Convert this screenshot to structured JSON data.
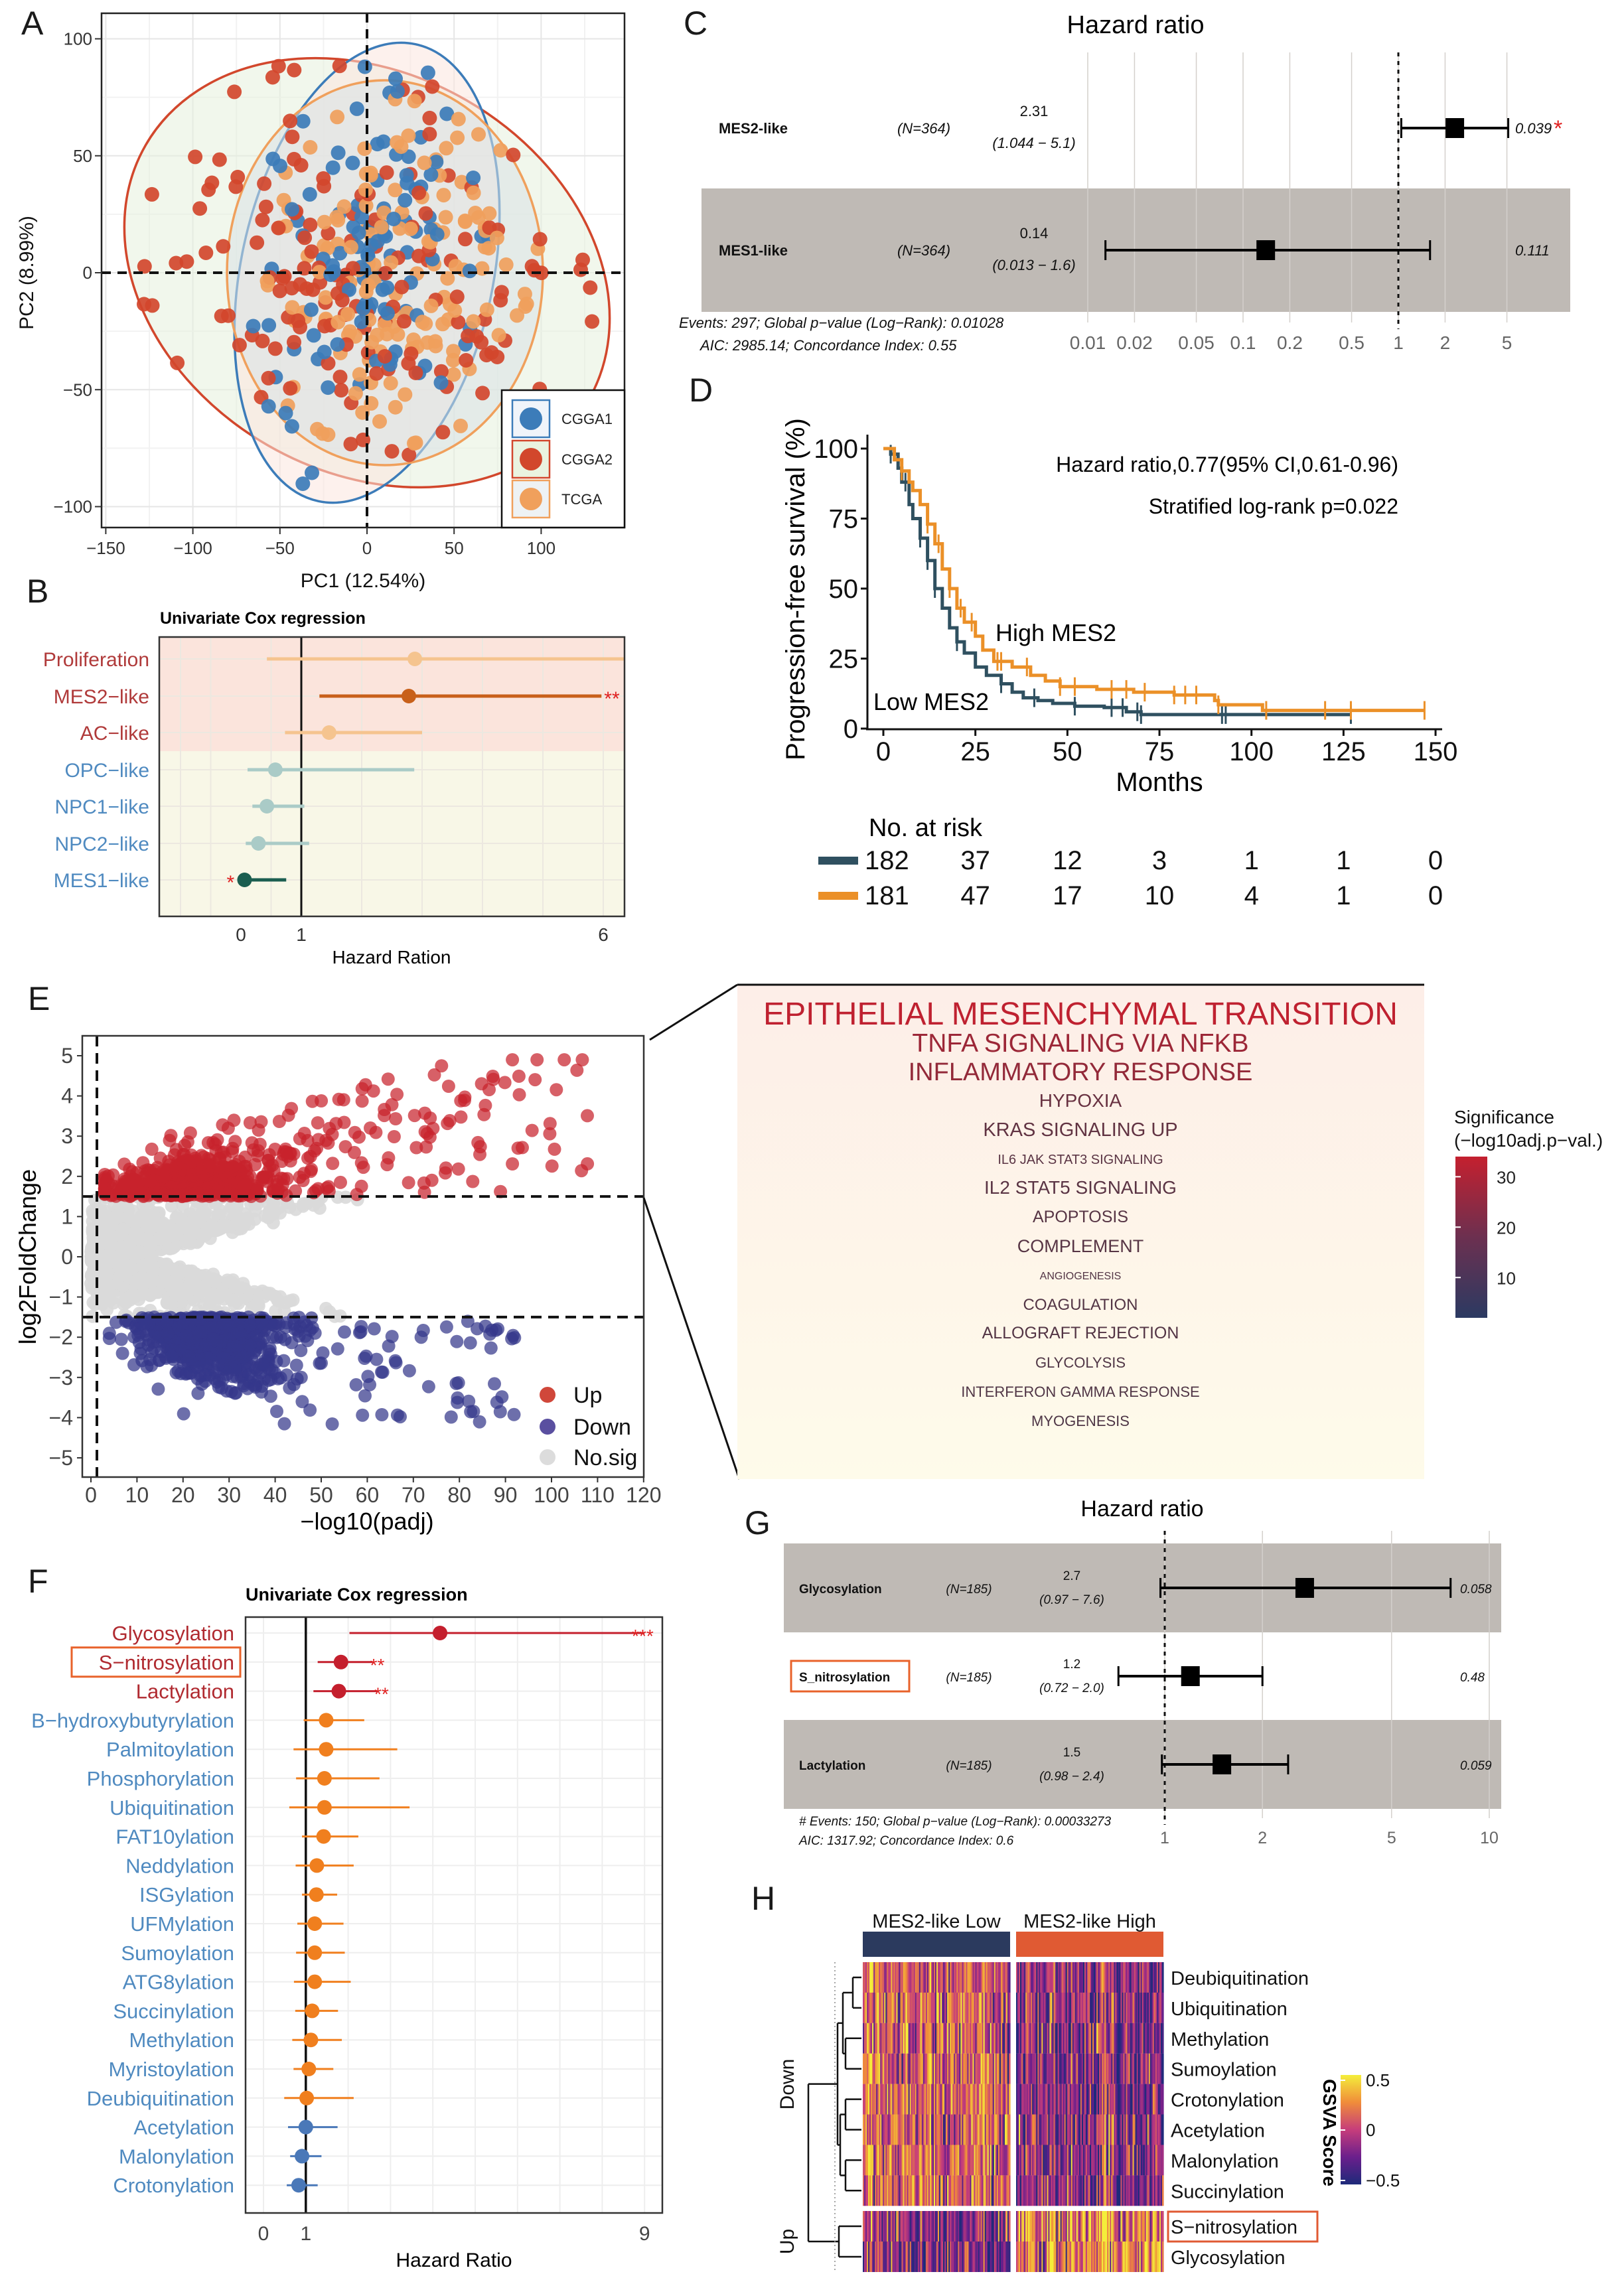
{
  "panel_labels": [
    "A",
    "B",
    "C",
    "D",
    "E",
    "F",
    "G",
    "H"
  ],
  "chart_data": [
    {
      "id": "A",
      "type": "scatter",
      "xlabel": "PC1 (12.54%)",
      "ylabel": "PC2 (8.99%)",
      "xlim": [
        -152,
        148
      ],
      "ylim": [
        -109,
        111
      ],
      "xticks": [
        -150,
        -100,
        -50,
        0,
        50,
        100
      ],
      "xtick_labels": [
        "−150",
        "−100",
        "−50",
        "0",
        "50",
        "100"
      ],
      "yticks": [
        -100,
        -50,
        0,
        50,
        100
      ],
      "ytick_labels": [
        "−100",
        "−50",
        "0",
        "50",
        "100"
      ],
      "grid": true,
      "legend_position": "bottom-right",
      "series": [
        {
          "name": "CGGA1",
          "color": "#3c7cb9"
        },
        {
          "name": "CGGA2",
          "color": "#d2472c"
        },
        {
          "name": "TCGA",
          "color": "#f0a05c"
        }
      ]
    },
    {
      "id": "B",
      "type": "forest",
      "title": "Univariate Cox regression",
      "xlabel": "Hazard Ration",
      "xticks": [
        0,
        1,
        6
      ],
      "xtick_labels": [
        "0",
        "1",
        "6"
      ],
      "xlim": [
        -1.35,
        6.35
      ],
      "rows": [
        {
          "label": "Proliferation",
          "hr": 2.88,
          "lo": 0.43,
          "hi": 6.35,
          "sig": "",
          "group": "risk",
          "color": "#f5c48f"
        },
        {
          "label": "MES2−like",
          "hr": 2.78,
          "lo": 1.3,
          "hi": 5.97,
          "sig": "**",
          "group": "risk",
          "color": "#c8601a"
        },
        {
          "label": "AC−like",
          "hr": 1.46,
          "lo": 0.73,
          "hi": 3.0,
          "sig": "",
          "group": "risk",
          "color": "#f5c48f"
        },
        {
          "label": "OPC−like",
          "hr": 0.57,
          "lo": 0.11,
          "hi": 2.87,
          "sig": "",
          "group": "protective",
          "color": "#aacbc7"
        },
        {
          "label": "NPC1−like",
          "hr": 0.43,
          "lo": 0.19,
          "hi": 1.05,
          "sig": "",
          "group": "protective",
          "color": "#aacbc7"
        },
        {
          "label": "NPC2−like",
          "hr": 0.29,
          "lo": 0.08,
          "hi": 1.13,
          "sig": "",
          "group": "protective",
          "color": "#aacbc7"
        },
        {
          "label": "MES1−like",
          "hr": 0.06,
          "lo": 0.06,
          "hi": 0.75,
          "sig": "*",
          "group": "protective",
          "color": "#1b5e50"
        }
      ],
      "colors": {
        "risk_label": "#b03a3a",
        "protective_label": "#4f8ac0",
        "risk_bg": "#fbe4dc",
        "protective_bg": "#f8f7e7",
        "sig": "#e02020"
      }
    },
    {
      "id": "C",
      "type": "forest-table",
      "title": "Hazard ratio",
      "xticks": [
        0.01,
        0.02,
        0.05,
        0.1,
        0.2,
        0.5,
        1,
        2,
        5
      ],
      "xtick_labels": [
        "0.01",
        "0.02",
        "0.05",
        "0.1",
        "0.2",
        "0.5",
        "1",
        "2",
        "5"
      ],
      "rows": [
        {
          "name": "MES2-like",
          "n": "(N=364)",
          "hr": "2.31",
          "ci": "(1.044 − 5.1)",
          "p": "0.039",
          "sig": "*",
          "est": 2.31,
          "lo": 1.044,
          "hi": 5.1,
          "shaded": false
        },
        {
          "name": "MES1-like",
          "n": "(N=364)",
          "hr": "0.14",
          "ci": "(0.013 − 1.6)",
          "p": "0.111",
          "sig": "",
          "est": 0.14,
          "lo": 0.013,
          "hi": 1.6,
          "shaded": true
        }
      ],
      "footer": [
        "Events: 297; Global p−value (Log−Rank): 0.01028",
        "AIC: 2985.14; Concordance Index: 0.55"
      ]
    },
    {
      "id": "D",
      "type": "line",
      "xlabel": "Months",
      "ylabel": "Progression-free survival (%)",
      "xticks": [
        0,
        25,
        50,
        75,
        100,
        125,
        150
      ],
      "yticks": [
        0,
        25,
        50,
        75,
        100
      ],
      "annotations": [
        "Hazard ratio,0.77(95% CI,0.61-0.96)",
        "Stratified log-rank p=0.022"
      ],
      "series": [
        {
          "name": "Low MES2",
          "color": "#2f5060",
          "steps": [
            [
              0,
              100
            ],
            [
              2,
              98
            ],
            [
              4,
              93
            ],
            [
              5,
              88
            ],
            [
              7,
              80
            ],
            [
              8,
              75
            ],
            [
              10,
              68
            ],
            [
              12,
              60
            ],
            [
              14,
              50
            ],
            [
              16,
              43
            ],
            [
              18,
              36
            ],
            [
              20,
              31
            ],
            [
              22,
              27
            ],
            [
              25,
              22
            ],
            [
              28,
              19
            ],
            [
              32,
              16
            ],
            [
              35,
              13
            ],
            [
              38,
              11
            ],
            [
              42,
              10
            ],
            [
              46,
              9
            ],
            [
              52,
              8
            ],
            [
              60,
              7.5
            ],
            [
              66,
              6
            ],
            [
              70,
              5
            ],
            [
              127,
              5
            ]
          ],
          "censor": [
            2,
            6,
            10,
            12,
            14,
            20,
            32,
            41,
            52,
            62,
            65,
            69,
            70,
            92,
            93,
            127
          ],
          "at_risk": [
            "182",
            "37",
            "12",
            "3",
            "1",
            "1",
            "0"
          ]
        },
        {
          "name": "High MES2",
          "color": "#eb9028",
          "steps": [
            [
              0,
              100
            ],
            [
              3,
              96
            ],
            [
              5,
              92
            ],
            [
              7,
              88
            ],
            [
              8,
              85
            ],
            [
              10,
              80
            ],
            [
              12,
              73
            ],
            [
              14,
              66
            ],
            [
              16,
              57
            ],
            [
              18,
              50
            ],
            [
              20,
              43
            ],
            [
              22,
              38
            ],
            [
              25,
              33
            ],
            [
              27,
              28
            ],
            [
              30,
              24
            ],
            [
              35,
              22
            ],
            [
              40,
              19
            ],
            [
              44,
              17
            ],
            [
              48,
              15
            ],
            [
              58,
              14
            ],
            [
              68,
              13
            ],
            [
              79,
              12
            ],
            [
              90,
              10
            ],
            [
              91,
              8.5
            ],
            [
              102,
              8.5
            ],
            [
              103,
              6.5
            ],
            [
              147,
              6.5
            ]
          ],
          "censor": [
            5,
            12,
            15,
            18,
            21,
            24,
            31,
            32,
            39,
            48,
            52,
            62,
            66,
            71,
            79,
            82,
            85,
            91,
            104,
            120,
            127,
            147
          ],
          "at_risk": [
            "181",
            "47",
            "17",
            "10",
            "4",
            "1",
            "0"
          ]
        }
      ],
      "risk_table_title": "No. at risk"
    },
    {
      "id": "E-volcano",
      "type": "scatter",
      "xlabel": "−log10(padj)",
      "ylabel": "log2FoldChange",
      "xticks": [
        0,
        10,
        20,
        30,
        40,
        50,
        60,
        70,
        80,
        90,
        100,
        110,
        120
      ],
      "yticks": [
        -5,
        -4,
        -3,
        -2,
        -1,
        0,
        1,
        2,
        3,
        4,
        5
      ],
      "ytick_labels": [
        "−5",
        "−4",
        "−3",
        "−2",
        "−1",
        "0",
        "1",
        "2",
        "3",
        "4",
        "5"
      ],
      "xlim": [
        -2,
        120
      ],
      "ylim": [
        -5.5,
        5.5
      ],
      "thresholds": {
        "log2fc": 1.5,
        "neglog10padj": 1.3
      },
      "legend": [
        {
          "label": "Up",
          "color": "#d0473a"
        },
        {
          "label": "Down",
          "color": "#5a4fa0"
        },
        {
          "label": "No.sig",
          "color": "#dcdcdc"
        }
      ]
    },
    {
      "id": "E-wordcloud",
      "type": "table",
      "terms": [
        {
          "label": "EPITHELIAL MESENCHYMAL TRANSITION",
          "significance": 33
        },
        {
          "label": "TNFA SIGNALING VIA NFKB",
          "significance": 26
        },
        {
          "label": "INFLAMMATORY RESPONSE",
          "significance": 24
        },
        {
          "label": "HYPOXIA",
          "significance": 14
        },
        {
          "label": "KRAS SIGNALING UP",
          "significance": 12
        },
        {
          "label": "IL6 JAK STAT3 SIGNALING",
          "significance": 10
        },
        {
          "label": "IL2 STAT5 SIGNALING",
          "significance": 10
        },
        {
          "label": "APOPTOSIS",
          "significance": 9
        },
        {
          "label": "COMPLEMENT",
          "significance": 9
        },
        {
          "label": "ANGIOGENESIS",
          "significance": 8
        },
        {
          "label": "COAGULATION",
          "significance": 8
        },
        {
          "label": "ALLOGRAFT REJECTION",
          "significance": 8
        },
        {
          "label": "GLYCOLYSIS",
          "significance": 7
        },
        {
          "label": "INTERFERON GAMMA RESPONSE",
          "significance": 7
        },
        {
          "label": "MYOGENESIS",
          "significance": 6
        }
      ],
      "legend_title": [
        "Significance",
        "(−log10adj.p−val.)"
      ],
      "legend_ticks": [
        10,
        20,
        30
      ],
      "legend_range": [
        2,
        34
      ],
      "colors": {
        "high": "#c0202e",
        "low": "#2b3a62"
      }
    },
    {
      "id": "F",
      "type": "forest",
      "title": "Univariate Cox regression",
      "xlabel": "Hazard Ratio",
      "xticks": [
        0,
        1,
        9
      ],
      "xtick_labels": [
        "0",
        "1",
        "9"
      ],
      "xlim": [
        -0.42,
        9.43
      ],
      "highlight": "S−nitrosylation",
      "colors": {
        "high": "#c41f2d",
        "mid": "#f07f1e",
        "low": "#4a78b8",
        "label_high": "#b02a30",
        "label_other": "#4f8ac0",
        "sig": "#e02020",
        "highlight_box": "#e8622a"
      },
      "rows": [
        {
          "label": "Glycosylation",
          "hr": 4.17,
          "lo": 2.03,
          "hi": 9.0,
          "sig": "***",
          "tier": "high"
        },
        {
          "label": "S−nitrosylation",
          "hr": 1.83,
          "lo": 1.28,
          "hi": 2.58,
          "sig": "**",
          "tier": "high"
        },
        {
          "label": "Lactylation",
          "hr": 1.78,
          "lo": 1.18,
          "hi": 2.68,
          "sig": "**",
          "tier": "high"
        },
        {
          "label": "B−hydroxybutyrylation",
          "hr": 1.48,
          "lo": 0.95,
          "hi": 2.38,
          "sig": "",
          "tier": "mid"
        },
        {
          "label": "Palmitoylation",
          "hr": 1.48,
          "lo": 0.71,
          "hi": 3.16,
          "sig": "",
          "tier": "mid"
        },
        {
          "label": "Phosphorylation",
          "hr": 1.44,
          "lo": 0.77,
          "hi": 2.74,
          "sig": "",
          "tier": "mid"
        },
        {
          "label": "Ubiquitination",
          "hr": 1.44,
          "lo": 0.61,
          "hi": 3.45,
          "sig": "",
          "tier": "mid"
        },
        {
          "label": "FAT10ylation",
          "hr": 1.42,
          "lo": 0.91,
          "hi": 2.24,
          "sig": "",
          "tier": "mid"
        },
        {
          "label": "Neddylation",
          "hr": 1.26,
          "lo": 0.76,
          "hi": 2.13,
          "sig": "",
          "tier": "mid"
        },
        {
          "label": "ISGylation",
          "hr": 1.25,
          "lo": 0.91,
          "hi": 1.74,
          "sig": "",
          "tier": "mid"
        },
        {
          "label": "UFMylation",
          "hr": 1.21,
          "lo": 0.8,
          "hi": 1.89,
          "sig": "",
          "tier": "mid"
        },
        {
          "label": "Sumoylation",
          "hr": 1.21,
          "lo": 0.77,
          "hi": 1.92,
          "sig": "",
          "tier": "mid"
        },
        {
          "label": "ATG8ylation",
          "hr": 1.21,
          "lo": 0.72,
          "hi": 2.06,
          "sig": "",
          "tier": "mid"
        },
        {
          "label": "Succinylation",
          "hr": 1.15,
          "lo": 0.75,
          "hi": 1.76,
          "sig": "",
          "tier": "mid"
        },
        {
          "label": "Methylation",
          "hr": 1.12,
          "lo": 0.68,
          "hi": 1.85,
          "sig": "",
          "tier": "mid"
        },
        {
          "label": "Myristoylation",
          "hr": 1.07,
          "lo": 0.71,
          "hi": 1.65,
          "sig": "",
          "tier": "mid"
        },
        {
          "label": "Deubiquitination",
          "hr": 1.02,
          "lo": 0.49,
          "hi": 2.13,
          "sig": "",
          "tier": "mid"
        },
        {
          "label": "Acetylation",
          "hr": 1.0,
          "lo": 0.58,
          "hi": 1.75,
          "sig": "",
          "tier": "low"
        },
        {
          "label": "Malonylation",
          "hr": 0.91,
          "lo": 0.63,
          "hi": 1.37,
          "sig": "",
          "tier": "low"
        },
        {
          "label": "Crotonylation",
          "hr": 0.83,
          "lo": 0.55,
          "hi": 1.28,
          "sig": "",
          "tier": "low"
        }
      ]
    },
    {
      "id": "G",
      "type": "forest-table",
      "title": "Hazard ratio",
      "xticks": [
        1,
        2,
        5,
        10
      ],
      "xtick_labels": [
        "1",
        "2",
        "5",
        "10"
      ],
      "rows": [
        {
          "name": "Glycosylation",
          "n": "(N=185)",
          "hr": "2.7",
          "ci": "(0.97 − 7.6)",
          "p": "0.058",
          "est": 2.7,
          "lo": 0.97,
          "hi": 7.6,
          "shaded": true,
          "highlight": false
        },
        {
          "name": "S_nitrosylation",
          "n": "(N=185)",
          "hr": "1.2",
          "ci": "(0.72 − 2.0)",
          "p": "0.48",
          "est": 1.2,
          "lo": 0.72,
          "hi": 2.0,
          "shaded": false,
          "highlight": true
        },
        {
          "name": "Lactylation",
          "n": "(N=185)",
          "hr": "1.5",
          "ci": "(0.98 − 2.4)",
          "p": "0.059",
          "est": 1.5,
          "lo": 0.98,
          "hi": 2.4,
          "shaded": true,
          "highlight": false
        }
      ],
      "footer": [
        "# Events: 150; Global p−value (Log−Rank): 0.00033273",
        "AIC: 1317.92; Concordance Index: 0.6"
      ]
    },
    {
      "id": "H",
      "type": "heatmap",
      "column_groups": [
        {
          "label": "MES2-like Low",
          "color": "#2b3a5e"
        },
        {
          "label": "MES2-like High",
          "color": "#e05a33"
        }
      ],
      "row_groups": [
        {
          "label": "Down",
          "rows": [
            "Deubiquitination",
            "Ubiquitination",
            "Methylation",
            "Sumoylation",
            "Crotonylation",
            "Acetylation",
            "Malonylation",
            "Succinylation"
          ]
        },
        {
          "label": "Up",
          "rows": [
            "S−nitrosylation",
            "Glycosylation"
          ]
        }
      ],
      "highlight": "S−nitrosylation",
      "legend_title": "GSVA Score",
      "legend_ticks": [
        0.5,
        0,
        -0.5
      ],
      "legend_tick_labels": [
        "0.5",
        "0",
        "−0.5"
      ],
      "color_scale": [
        "#1d2a7a",
        "#6b1f8c",
        "#c63d7b",
        "#f08c3a",
        "#f4ee3a"
      ]
    }
  ]
}
